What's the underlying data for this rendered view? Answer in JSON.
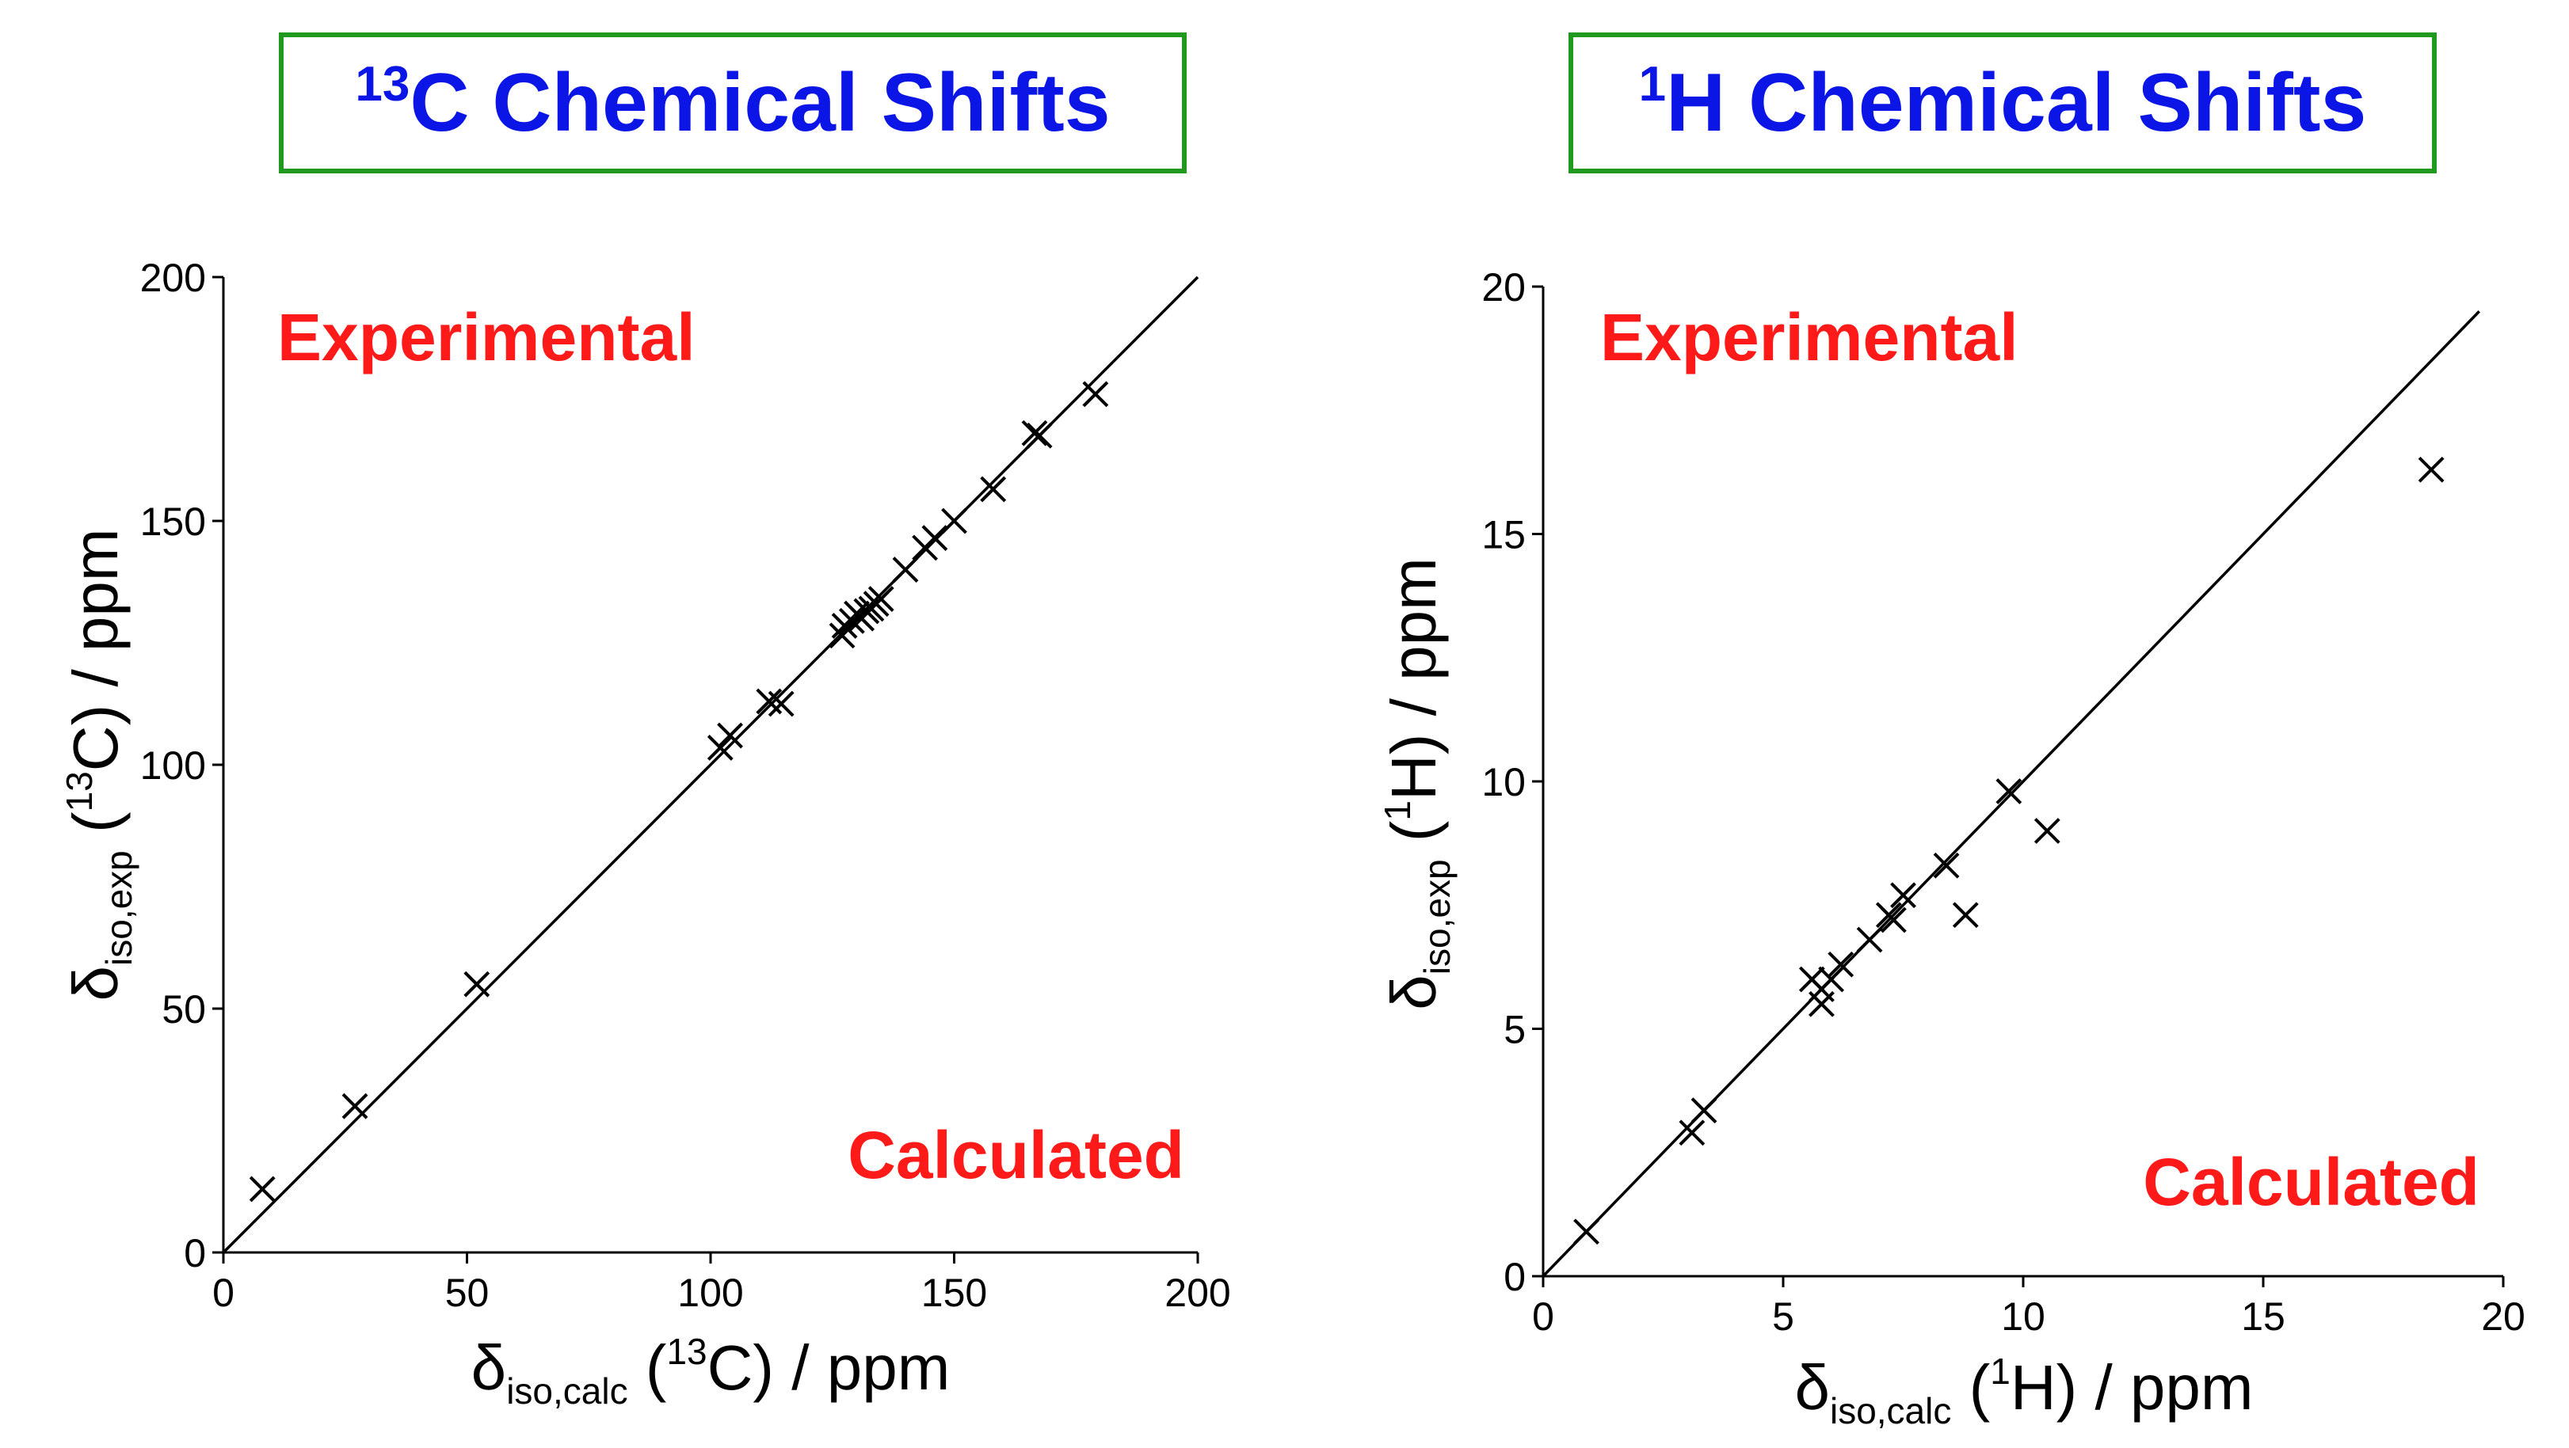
{
  "colors": {
    "title_text": "#0b16e6",
    "title_border": "#1f9a1f",
    "annotation": "#ff1a1a",
    "marker": "#000000"
  },
  "chart_data": [
    {
      "type": "scatter",
      "id": "carbon",
      "title": {
        "superscript": "13",
        "text": "C Chemical Shifts"
      },
      "xlabel": {
        "delta": "δ",
        "sub": "iso,calc",
        "open": " (",
        "sup": "13",
        "nucleus": "C) / ppm"
      },
      "ylabel": {
        "delta": "δ",
        "sub": "iso,exp",
        "open": " (",
        "sup": "13",
        "nucleus": "C) / ppm"
      },
      "xlim": [
        0,
        200
      ],
      "ylim": [
        0,
        200
      ],
      "xticks": [
        0,
        50,
        100,
        150,
        200
      ],
      "yticks": [
        0,
        50,
        100,
        150,
        200
      ],
      "diagonal": [
        [
          0,
          0
        ],
        [
          200,
          200
        ]
      ],
      "annotations": {
        "top_left": "Experimental",
        "bottom_right": "Calculated"
      },
      "points": [
        [
          8,
          13
        ],
        [
          27,
          30
        ],
        [
          52,
          55
        ],
        [
          102,
          103.5
        ],
        [
          104,
          106
        ],
        [
          112,
          113
        ],
        [
          114.5,
          112.5
        ],
        [
          127,
          126.5
        ],
        [
          127.5,
          128.5
        ],
        [
          129,
          129.5
        ],
        [
          130,
          131
        ],
        [
          131,
          130
        ],
        [
          132,
          131.5
        ],
        [
          133,
          132
        ],
        [
          134,
          133
        ],
        [
          135,
          134
        ],
        [
          140,
          140
        ],
        [
          144,
          144.5
        ],
        [
          146,
          146.5
        ],
        [
          150,
          150
        ],
        [
          158,
          156.5
        ],
        [
          166.5,
          168
        ],
        [
          167.5,
          167.5
        ],
        [
          179,
          176
        ]
      ]
    },
    {
      "type": "scatter",
      "id": "proton",
      "title": {
        "superscript": "1",
        "text": "H Chemical Shifts"
      },
      "xlabel": {
        "delta": "δ",
        "sub": "iso,calc",
        "open": " (",
        "sup": "1",
        "nucleus": "H) / ppm"
      },
      "ylabel": {
        "delta": "δ",
        "sub": "iso,exp",
        "open": " (",
        "sup": "1",
        "nucleus": "H) / ppm"
      },
      "xlim": [
        0,
        20
      ],
      "ylim": [
        0,
        20
      ],
      "xticks": [
        0,
        5,
        10,
        15,
        20
      ],
      "yticks": [
        0,
        5,
        10,
        15,
        20
      ],
      "diagonal": [
        [
          0,
          0
        ],
        [
          19.5,
          19.5
        ]
      ],
      "annotations": {
        "top_left": "Experimental",
        "bottom_right": "Calculated"
      },
      "points": [
        [
          0.9,
          0.9
        ],
        [
          3.1,
          2.9
        ],
        [
          3.35,
          3.35
        ],
        [
          5.6,
          6.0
        ],
        [
          5.8,
          5.8
        ],
        [
          5.8,
          5.5
        ],
        [
          6.0,
          6.0
        ],
        [
          6.2,
          6.3
        ],
        [
          6.8,
          6.8
        ],
        [
          7.2,
          7.3
        ],
        [
          7.3,
          7.2
        ],
        [
          7.5,
          7.7
        ],
        [
          8.4,
          8.3
        ],
        [
          8.8,
          7.3
        ],
        [
          9.7,
          9.8
        ],
        [
          10.5,
          9.0
        ],
        [
          18.5,
          16.3
        ]
      ]
    }
  ]
}
